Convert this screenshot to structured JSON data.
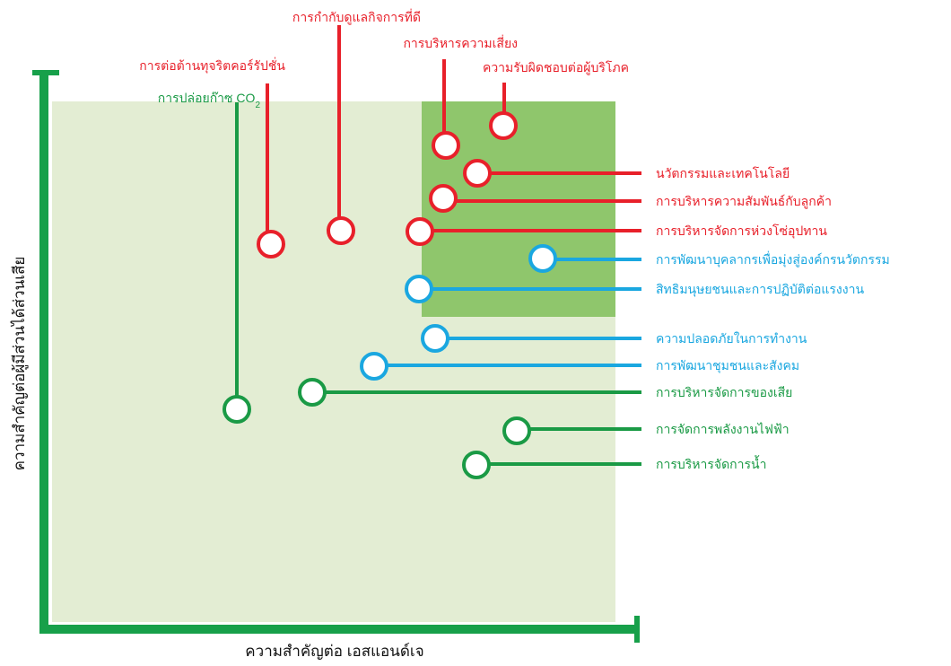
{
  "axes": {
    "x_label": "ความสำคัญต่อ เอสแอนด์เจ",
    "y_label": "ความสำคัญต่อผู้มีส่วนได้ส่วนเสีย"
  },
  "colors": {
    "red": "#e8202a",
    "blue": "#1aa7e0",
    "green": "#1a9a45",
    "axis": "#17a04a",
    "bg_light": "#e3edd3",
    "bg_dark": "#8fc66c"
  },
  "issues": {
    "corruption": "การต่อต้านทุจริตคอร์รัปชั่น",
    "governance": "การกำกับดูแลกิจการที่ดี",
    "risk": "การบริหารความเสี่ยง",
    "consumer": "ความรับผิดชอบต่อผู้บริโภค",
    "co2": "การปล่อยก๊าซ CO",
    "co2_sub": "2",
    "innovation": "นวัตกรรมและเทคโนโลยี",
    "crm": "การบริหารความสัมพันธ์กับลูกค้า",
    "supply": "การบริหารจัดการห่วงโซ่อุปทาน",
    "people": "การพัฒนาบุคลากรเพื่อมุ่งสู่องค์กรนวัตกรรม",
    "human_rights": "สิทธิมนุษยชนและการปฏิบัติต่อแรงงาน",
    "safety": "ความปลอดภัยในการทำงาน",
    "community": "การพัฒนาชุมชนและสังคม",
    "waste": "การบริหารจัดการของเสีย",
    "energy": "การจัดการพลังงานไฟฟ้า",
    "water": "การบริหารจัดการน้ำ"
  }
}
